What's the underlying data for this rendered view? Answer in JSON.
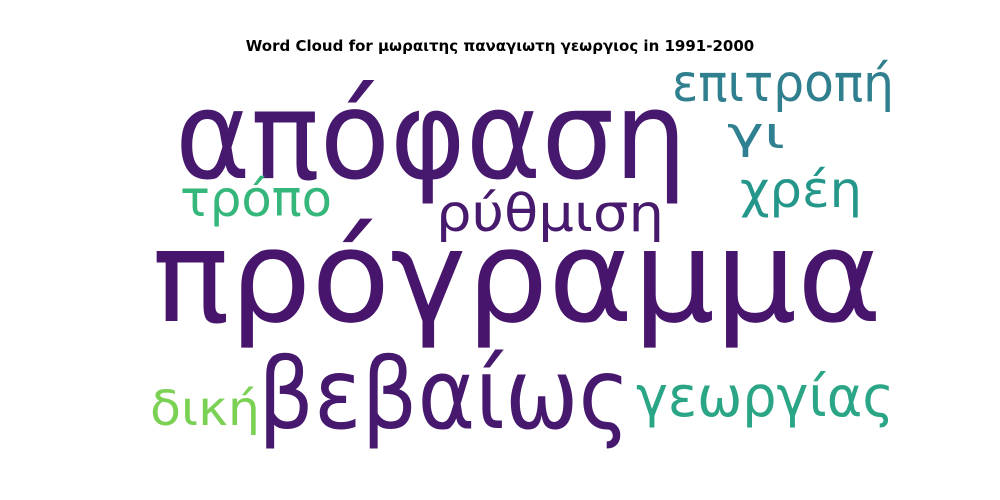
{
  "chart_data": {
    "type": "wordcloud",
    "title": "Word Cloud for μωραιτης παναγιωτη γεωργιος in 1991-2000",
    "words": [
      {
        "text": "απόφαση",
        "color": "#46186e"
      },
      {
        "text": "πρόγραμμα",
        "color": "#47156c"
      },
      {
        "text": "βεβαίως",
        "color": "#46186e"
      },
      {
        "text": "ρύθμιση",
        "color": "#471a6e"
      },
      {
        "text": "επιτροπή",
        "color": "#2f7f8e"
      },
      {
        "text": "γι",
        "color": "#2f8090"
      },
      {
        "text": "χρέη",
        "color": "#25978a"
      },
      {
        "text": "τρόπο",
        "color": "#35b67a"
      },
      {
        "text": "γεωργίας",
        "color": "#2aa586"
      },
      {
        "text": "δική",
        "color": "#7ad153"
      }
    ]
  }
}
